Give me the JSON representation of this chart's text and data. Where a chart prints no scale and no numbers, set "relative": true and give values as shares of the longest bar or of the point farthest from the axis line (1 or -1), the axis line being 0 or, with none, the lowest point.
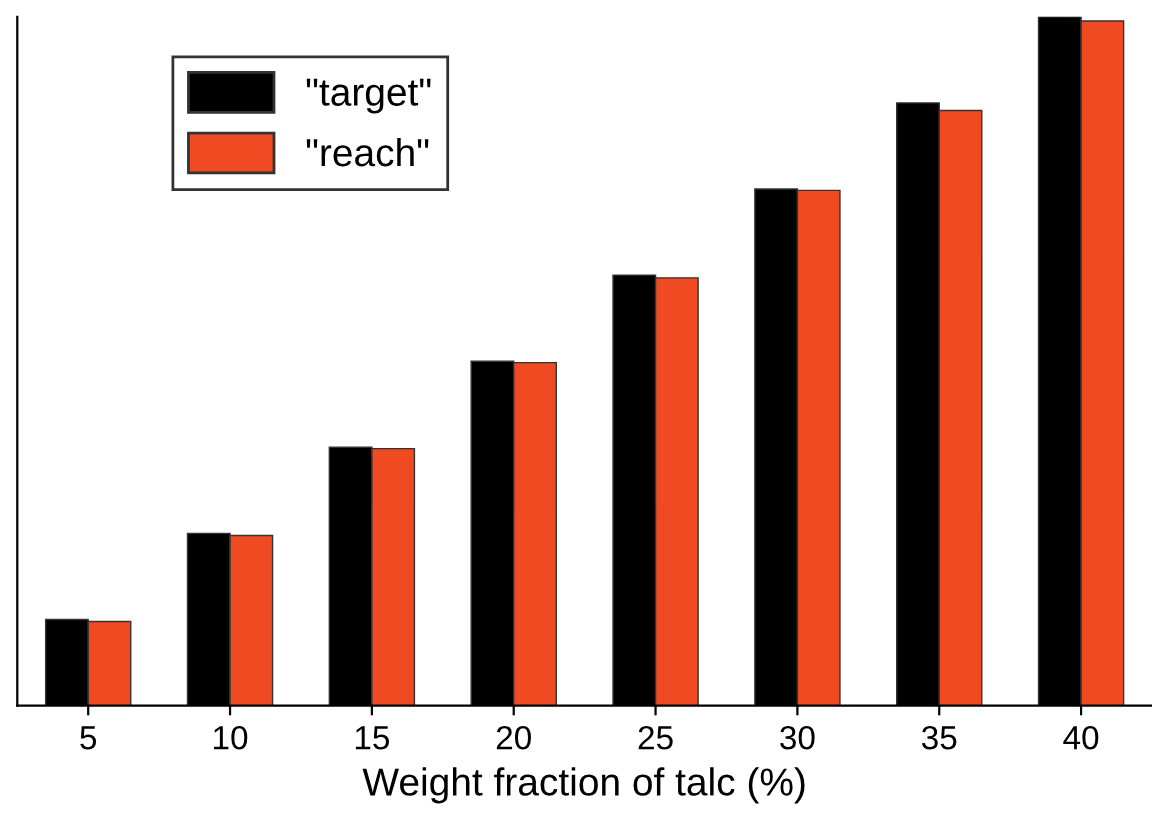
{
  "chart_data": {
    "type": "bar",
    "xlabel": "Weight fraction of talc (%)",
    "categories": [
      "5",
      "10",
      "15",
      "20",
      "25",
      "30",
      "35",
      "40"
    ],
    "relative": true,
    "legend": "top left",
    "grid": false,
    "series": [
      {
        "name": "\"target\"",
        "color": "#000000",
        "values": [
          0.125,
          0.25,
          0.375,
          0.5,
          0.625,
          0.75,
          0.875,
          1
        ]
      },
      {
        "name": "\"reach\"",
        "color": "#f04a23",
        "values": [
          0.122,
          0.247,
          0.373,
          0.498,
          0.621,
          0.748,
          0.864,
          0.994
        ]
      }
    ]
  }
}
